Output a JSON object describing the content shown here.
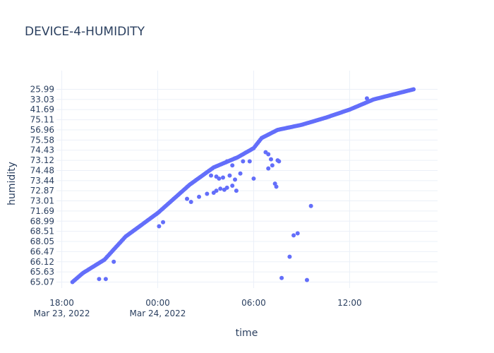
{
  "chart_data": {
    "type": "scatter",
    "title": "DEVICE-4-HUMIDITY",
    "xlabel": "time",
    "ylabel": "humidity",
    "y_axis_type": "category",
    "y_categories": [
      "65.07",
      "65.63",
      "66.12",
      "66.47",
      "68.05",
      "68.51",
      "68.99",
      "71.69",
      "73.01",
      "72.87",
      "73.44",
      "74.48",
      "73.12",
      "74.43",
      "75.58",
      "56.96",
      "75.11",
      "41.69",
      "33.03",
      "25.99"
    ],
    "x_ticks": [
      {
        "value": "2022-03-23T18:00",
        "line1": "18:00",
        "line2": "Mar 23, 2022"
      },
      {
        "value": "2022-03-24T00:00",
        "line1": "00:00",
        "line2": "Mar 24, 2022"
      },
      {
        "value": "2022-03-24T06:00",
        "line1": "06:00",
        "line2": ""
      },
      {
        "value": "2022-03-24T12:00",
        "line1": "12:00",
        "line2": ""
      }
    ],
    "x_range": [
      "2022-03-23T17:40",
      "2022-03-24T17:30"
    ],
    "grid": true,
    "marker_color": "#636efa",
    "trend_keypoints": [
      [
        "2022-03-23T18:40",
        0
      ],
      [
        "2022-03-23T19:20",
        0.9
      ],
      [
        "2022-03-23T20:40",
        2.2
      ],
      [
        "2022-03-23T22:00",
        4.5
      ],
      [
        "2022-03-24T00:00",
        6.8
      ],
      [
        "2022-03-24T02:00",
        9.6
      ],
      [
        "2022-03-24T03:30",
        11.3
      ],
      [
        "2022-03-24T05:00",
        12.3
      ],
      [
        "2022-03-24T06:00",
        13.2
      ],
      [
        "2022-03-24T06:30",
        14.2
      ],
      [
        "2022-03-24T07:30",
        15.0
      ],
      [
        "2022-03-24T09:00",
        15.5
      ],
      [
        "2022-03-24T10:30",
        16.2
      ],
      [
        "2022-03-24T12:00",
        17.0
      ],
      [
        "2022-03-24T13:30",
        18.0
      ],
      [
        "2022-03-24T16:00",
        19.0
      ]
    ],
    "scatter_points": [
      [
        "2022-03-23T20:20",
        0.3
      ],
      [
        "2022-03-23T20:45",
        0.3
      ],
      [
        "2022-03-23T21:15",
        2.0
      ],
      [
        "2022-03-24T00:05",
        5.5
      ],
      [
        "2022-03-24T00:20",
        5.9
      ],
      [
        "2022-03-24T01:50",
        8.2
      ],
      [
        "2022-03-24T02:05",
        7.9
      ],
      [
        "2022-03-24T02:35",
        8.4
      ],
      [
        "2022-03-24T03:05",
        8.7
      ],
      [
        "2022-03-24T03:30",
        8.8
      ],
      [
        "2022-03-24T03:40",
        9.0
      ],
      [
        "2022-03-24T03:55",
        9.2
      ],
      [
        "2022-03-24T04:10",
        9.1
      ],
      [
        "2022-03-24T04:20",
        9.3
      ],
      [
        "2022-03-24T04:40",
        9.5
      ],
      [
        "2022-03-24T04:55",
        9.0
      ],
      [
        "2022-03-24T03:20",
        10.5
      ],
      [
        "2022-03-24T03:40",
        10.4
      ],
      [
        "2022-03-24T03:50",
        10.2
      ],
      [
        "2022-03-24T04:05",
        10.3
      ],
      [
        "2022-03-24T04:30",
        10.5
      ],
      [
        "2022-03-24T04:50",
        10.1
      ],
      [
        "2022-03-24T05:10",
        10.7
      ],
      [
        "2022-03-24T04:20",
        11.9
      ],
      [
        "2022-03-24T04:50",
        12.2
      ],
      [
        "2022-03-24T05:20",
        11.9
      ],
      [
        "2022-03-24T05:45",
        11.9
      ],
      [
        "2022-03-24T04:40",
        11.5
      ],
      [
        "2022-03-24T06:00",
        10.2
      ],
      [
        "2022-03-24T06:45",
        12.8
      ],
      [
        "2022-03-24T06:55",
        12.6
      ],
      [
        "2022-03-24T07:05",
        12.1
      ],
      [
        "2022-03-24T06:55",
        11.2
      ],
      [
        "2022-03-24T07:10",
        11.5
      ],
      [
        "2022-03-24T07:20",
        9.7
      ],
      [
        "2022-03-24T07:25",
        9.4
      ],
      [
        "2022-03-24T07:30",
        12.0
      ],
      [
        "2022-03-24T07:35",
        11.9
      ],
      [
        "2022-03-24T07:45",
        0.4
      ],
      [
        "2022-03-24T08:15",
        2.5
      ],
      [
        "2022-03-24T08:30",
        4.6
      ],
      [
        "2022-03-24T08:45",
        4.8
      ],
      [
        "2022-03-24T09:20",
        0.2
      ],
      [
        "2022-03-24T09:35",
        7.5
      ],
      [
        "2022-03-24T13:05",
        18.1
      ]
    ]
  }
}
